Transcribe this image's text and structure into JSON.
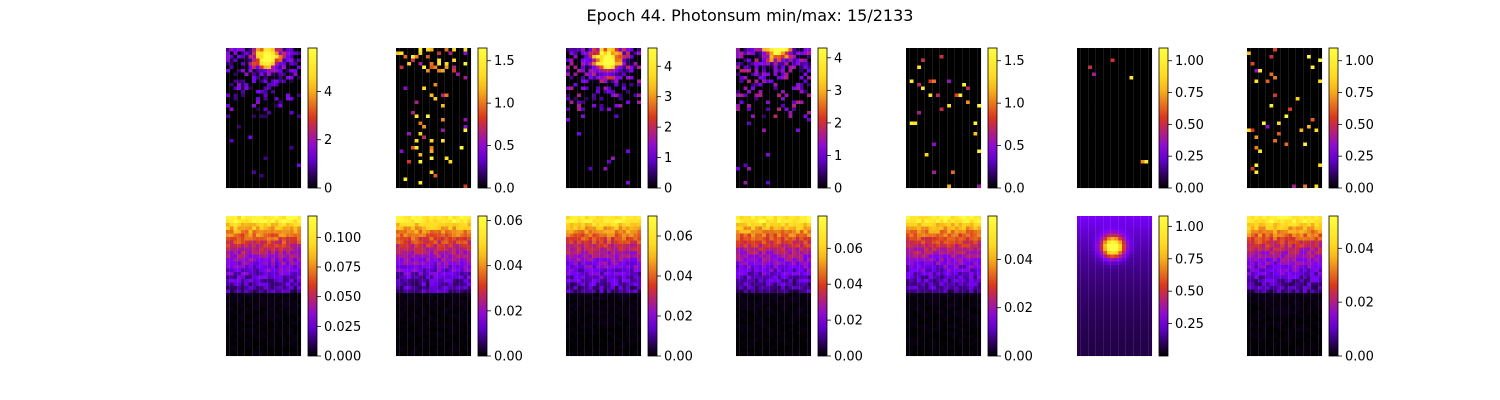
{
  "chart_data": {
    "type": "heatmap",
    "title": "Epoch 44. Photonsum min/max: 15/2133",
    "colormap": "gnuplot",
    "colormap_stops": [
      "#000000",
      "#7a00ff",
      "#d9361f",
      "#ffd21a",
      "#ffff40"
    ],
    "layout": {
      "rows": 2,
      "cols": 7
    },
    "panels": [
      {
        "row": 0,
        "col": 0,
        "pattern": "spot",
        "spot": {
          "x": 0.55,
          "y": 0.06,
          "peak": 5.6,
          "radius": 0.12
        },
        "vmin": 0,
        "vmax": 5.8,
        "ticks": [
          0,
          2,
          4
        ],
        "tick_labels": [
          "0",
          "2",
          "4"
        ]
      },
      {
        "row": 0,
        "col": 1,
        "pattern": "sparse",
        "density": 0.08,
        "peak": 1.6,
        "vmin": 0,
        "vmax": 1.65,
        "ticks": [
          0,
          0.5,
          1.0,
          1.5
        ],
        "tick_labels": [
          "0.0",
          "0.5",
          "1.0",
          "1.5"
        ]
      },
      {
        "row": 0,
        "col": 2,
        "pattern": "spot",
        "spot": {
          "x": 0.55,
          "y": 0.08,
          "peak": 4.4,
          "radius": 0.13
        },
        "vmin": 0,
        "vmax": 4.6,
        "ticks": [
          0,
          1,
          2,
          3,
          4
        ],
        "tick_labels": [
          "0",
          "1",
          "2",
          "3",
          "4"
        ]
      },
      {
        "row": 0,
        "col": 3,
        "pattern": "spot",
        "spot": {
          "x": 0.55,
          "y": 0.0,
          "peak": 4.2,
          "radius": 0.12
        },
        "vmin": 0,
        "vmax": 4.3,
        "ticks": [
          0,
          1,
          2,
          3,
          4
        ],
        "tick_labels": [
          "0",
          "1",
          "2",
          "3",
          "4"
        ]
      },
      {
        "row": 0,
        "col": 4,
        "pattern": "sparse",
        "density": 0.03,
        "peak": 1.6,
        "vmin": 0,
        "vmax": 1.65,
        "ticks": [
          0,
          0.5,
          1.0,
          1.5
        ],
        "tick_labels": [
          "0.0",
          "0.5",
          "1.0",
          "1.5"
        ]
      },
      {
        "row": 0,
        "col": 5,
        "pattern": "sparse",
        "density": 0.01,
        "peak": 1.08,
        "vmin": 0,
        "vmax": 1.1,
        "ticks": [
          0,
          0.25,
          0.5,
          0.75,
          1.0
        ],
        "tick_labels": [
          "0.00",
          "0.25",
          "0.50",
          "0.75",
          "1.00"
        ]
      },
      {
        "row": 0,
        "col": 6,
        "pattern": "sparse",
        "density": 0.05,
        "peak": 1.08,
        "vmin": 0,
        "vmax": 1.1,
        "ticks": [
          0,
          0.25,
          0.5,
          0.75,
          1.0
        ],
        "tick_labels": [
          "0.00",
          "0.25",
          "0.50",
          "0.75",
          "1.00"
        ]
      },
      {
        "row": 1,
        "col": 0,
        "pattern": "gradient",
        "peak": 0.115,
        "vmin": 0,
        "vmax": 0.118,
        "ticks": [
          0,
          0.025,
          0.05,
          0.075,
          0.1
        ],
        "tick_labels": [
          "0.000",
          "0.025",
          "0.050",
          "0.075",
          "0.100"
        ]
      },
      {
        "row": 1,
        "col": 1,
        "pattern": "gradient",
        "peak": 0.06,
        "vmin": 0,
        "vmax": 0.062,
        "ticks": [
          0,
          0.02,
          0.04,
          0.06
        ],
        "tick_labels": [
          "0.00",
          "0.02",
          "0.04",
          "0.06"
        ]
      },
      {
        "row": 1,
        "col": 2,
        "pattern": "gradient",
        "peak": 0.068,
        "vmin": 0,
        "vmax": 0.07,
        "ticks": [
          0,
          0.02,
          0.04,
          0.06
        ],
        "tick_labels": [
          "0.00",
          "0.02",
          "0.04",
          "0.06"
        ]
      },
      {
        "row": 1,
        "col": 3,
        "pattern": "gradient",
        "peak": 0.075,
        "vmin": 0,
        "vmax": 0.078,
        "ticks": [
          0,
          0.02,
          0.04,
          0.06
        ],
        "tick_labels": [
          "0.00",
          "0.02",
          "0.04",
          "0.06"
        ]
      },
      {
        "row": 1,
        "col": 4,
        "pattern": "gradient",
        "peak": 0.055,
        "vmin": 0,
        "vmax": 0.058,
        "ticks": [
          0,
          0.02,
          0.04
        ],
        "tick_labels": [
          "0.00",
          "0.02",
          "0.04"
        ]
      },
      {
        "row": 1,
        "col": 5,
        "pattern": "glow",
        "spot": {
          "x": 0.48,
          "y": 0.22,
          "peak": 1.05,
          "radius": 0.1
        },
        "vmin": 0.0,
        "vmax": 1.08,
        "ticks": [
          0.25,
          0.5,
          0.75,
          1.0
        ],
        "tick_labels": [
          "0.25",
          "0.50",
          "0.75",
          "1.00"
        ]
      },
      {
        "row": 1,
        "col": 6,
        "pattern": "gradient",
        "peak": 0.05,
        "vmin": 0,
        "vmax": 0.052,
        "ticks": [
          0,
          0.02,
          0.04
        ],
        "tick_labels": [
          "0.00",
          "0.02",
          "0.04"
        ]
      }
    ]
  }
}
